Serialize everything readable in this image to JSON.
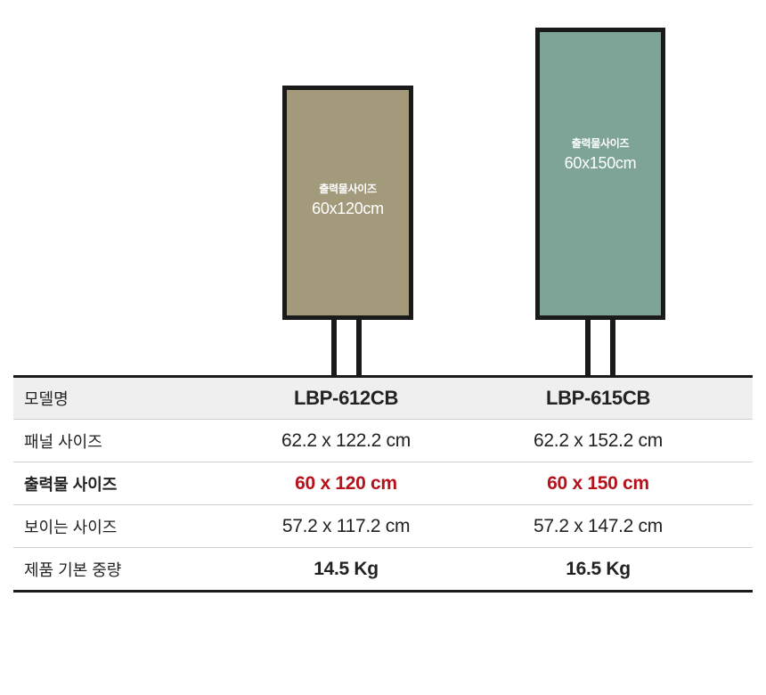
{
  "stands": [
    {
      "name": "LBP-612CB",
      "caption": "출력물사이즈",
      "size": "60x120cm",
      "color": "#a39a7b"
    },
    {
      "name": "LBP-615CB",
      "caption": "출력물사이즈",
      "size": "60x150cm",
      "color": "#7da497"
    }
  ],
  "table": {
    "rows": [
      {
        "label": "모델명",
        "a": "LBP-612CB",
        "b": "LBP-615CB"
      },
      {
        "label": "패널 사이즈",
        "a": "62.2 x 122.2 cm",
        "b": "62.2 x 152.2 cm"
      },
      {
        "label": "출력물 사이즈",
        "a": "60 x 120 cm",
        "b": "60 x 150 cm",
        "highlight_color": "#b5121b"
      },
      {
        "label": "보이는 사이즈",
        "a": "57.2 x 117.2 cm",
        "b": "57.2 x 147.2 cm"
      },
      {
        "label": "제품 기본 중량",
        "a": "14.5 Kg",
        "b": "16.5 Kg"
      }
    ]
  }
}
